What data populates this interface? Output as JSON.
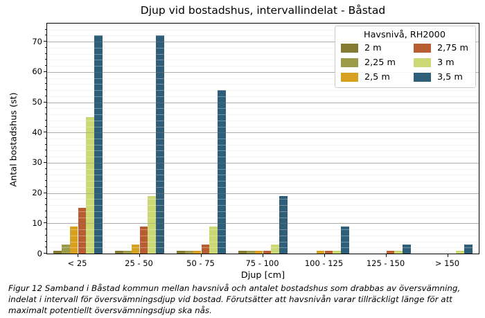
{
  "caption": "Figur 12 Samband i Båstad kommun mellan havsnivå och antalet bostadshus som drabbas av översvämning, indelat i intervall för översvämningsdjup vid bostad. Förutsätter att havsnivån varar tillräckligt länge för att maximalt potentiellt översvämningsdjup ska nås.",
  "chart_data": {
    "type": "bar",
    "title": "Djup vid bostadshus, intervallindelat - Båstad",
    "xlabel": "Djup [cm]",
    "ylabel": "Antal bostadshus (st)",
    "legend_title": "Havsnivå, RH2000",
    "legend_position": "upper right",
    "grid": true,
    "minor_grid_step": 2,
    "ylim": [
      0,
      76
    ],
    "yticks": [
      0,
      10,
      20,
      30,
      40,
      50,
      60,
      70
    ],
    "categories": [
      "< 25",
      "25 - 50",
      "50 - 75",
      "75 - 100",
      "100 - 125",
      "125 - 150",
      "> 150"
    ],
    "series": [
      {
        "name": "2 m",
        "color": "#857a33",
        "values": [
          1,
          1,
          1,
          1,
          0,
          0,
          0
        ]
      },
      {
        "name": "2,25 m",
        "color": "#9c9b4a",
        "values": [
          3,
          1,
          1,
          1,
          0,
          0,
          0
        ]
      },
      {
        "name": "2,5 m",
        "color": "#d7a021",
        "values": [
          9,
          3,
          1,
          1,
          1,
          0,
          0
        ]
      },
      {
        "name": "2,75 m",
        "color": "#b85c32",
        "values": [
          15,
          9,
          3,
          1,
          1,
          1,
          0
        ]
      },
      {
        "name": "3 m",
        "color": "#ccd874",
        "values": [
          45,
          19,
          9,
          3,
          1,
          1,
          1
        ]
      },
      {
        "name": "3,5 m",
        "color": "#2e5e78",
        "values": [
          72,
          72,
          54,
          19,
          9,
          3,
          3
        ]
      }
    ]
  }
}
